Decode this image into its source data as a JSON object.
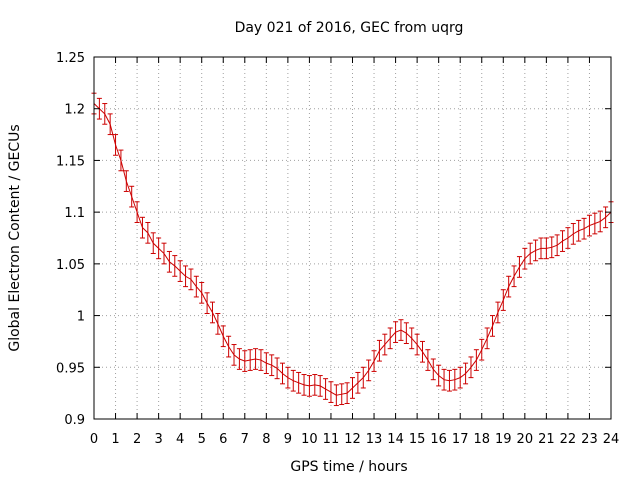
{
  "chart_data": {
    "type": "line",
    "title": "Day 021 of 2016, GEC from uqrg",
    "xlabel": "GPS time / hours",
    "ylabel": "Global Electron Content / GECUs",
    "xlim": [
      0,
      24
    ],
    "ylim": [
      0.9,
      1.25
    ],
    "grid": true,
    "x_ticks": [
      0,
      1,
      2,
      3,
      4,
      5,
      6,
      7,
      8,
      9,
      10,
      11,
      12,
      13,
      14,
      15,
      16,
      17,
      18,
      19,
      20,
      21,
      22,
      23,
      24
    ],
    "x_tick_labels": [
      "0",
      "1",
      "2",
      "3",
      "4",
      "5",
      "6",
      "7",
      "8",
      "9",
      "10",
      "11",
      "12",
      "13",
      "14",
      "15",
      "16",
      "17",
      "18",
      "19",
      "20",
      "21",
      "22",
      "23",
      "24"
    ],
    "y_ticks": [
      0.9,
      0.95,
      1.0,
      1.05,
      1.1,
      1.15,
      1.2,
      1.25
    ],
    "y_tick_labels": [
      "0.9",
      "0.95",
      "1",
      "1.05",
      "1.1",
      "1.15",
      "1.2",
      "1.25"
    ],
    "color": "#cc0000",
    "error": 0.01,
    "x": [
      0,
      0.25,
      0.5,
      0.75,
      1,
      1.25,
      1.5,
      1.75,
      2,
      2.25,
      2.5,
      2.75,
      3,
      3.25,
      3.5,
      3.75,
      4,
      4.25,
      4.5,
      4.75,
      5,
      5.25,
      5.5,
      5.75,
      6,
      6.25,
      6.5,
      6.75,
      7,
      7.25,
      7.5,
      7.75,
      8,
      8.25,
      8.5,
      8.75,
      9,
      9.25,
      9.5,
      9.75,
      10,
      10.25,
      10.5,
      10.75,
      11,
      11.25,
      11.5,
      11.75,
      12,
      12.25,
      12.5,
      12.75,
      13,
      13.25,
      13.5,
      13.75,
      14,
      14.25,
      14.5,
      14.75,
      15,
      15.25,
      15.5,
      15.75,
      16,
      16.25,
      16.5,
      16.75,
      17,
      17.25,
      17.5,
      17.75,
      18,
      18.25,
      18.5,
      18.75,
      19,
      19.25,
      19.5,
      19.75,
      20,
      20.25,
      20.5,
      20.75,
      21,
      21.25,
      21.5,
      21.75,
      22,
      22.25,
      22.5,
      22.75,
      23,
      23.25,
      23.5,
      23.75,
      24
    ],
    "y": [
      1.205,
      1.2,
      1.195,
      1.185,
      1.165,
      1.15,
      1.13,
      1.115,
      1.1,
      1.085,
      1.08,
      1.07,
      1.065,
      1.06,
      1.052,
      1.048,
      1.043,
      1.038,
      1.035,
      1.028,
      1.022,
      1.012,
      1.003,
      0.992,
      0.98,
      0.97,
      0.962,
      0.958,
      0.956,
      0.957,
      0.958,
      0.957,
      0.954,
      0.952,
      0.949,
      0.944,
      0.94,
      0.937,
      0.935,
      0.933,
      0.932,
      0.933,
      0.932,
      0.929,
      0.926,
      0.923,
      0.924,
      0.925,
      0.93,
      0.935,
      0.94,
      0.947,
      0.956,
      0.966,
      0.972,
      0.978,
      0.984,
      0.986,
      0.983,
      0.978,
      0.972,
      0.965,
      0.957,
      0.948,
      0.942,
      0.938,
      0.937,
      0.938,
      0.94,
      0.944,
      0.95,
      0.957,
      0.967,
      0.978,
      0.99,
      1.003,
      1.015,
      1.028,
      1.038,
      1.047,
      1.055,
      1.06,
      1.063,
      1.065,
      1.065,
      1.066,
      1.068,
      1.072,
      1.075,
      1.079,
      1.082,
      1.084,
      1.087,
      1.089,
      1.091,
      1.095,
      1.1
    ]
  }
}
